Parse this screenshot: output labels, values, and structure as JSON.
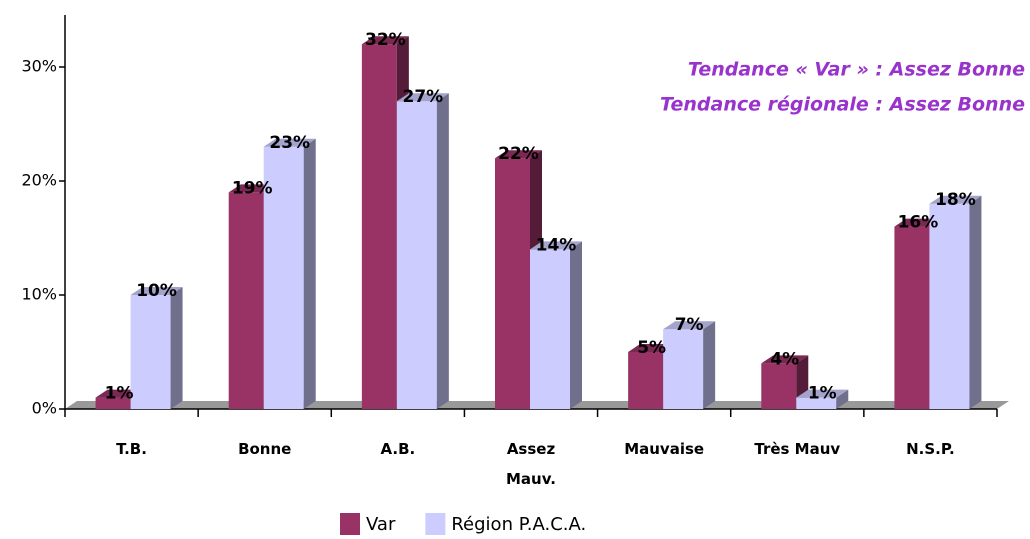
{
  "chart_data": {
    "type": "bar3d",
    "categories": [
      "T.B.",
      "Bonne",
      "A.B.",
      "Assez\nMauv.",
      "Mauvaise",
      "Très Mauv",
      "N.S.P."
    ],
    "series": [
      {
        "name": "Var",
        "color": "#993366",
        "values": [
          1,
          19,
          32,
          22,
          5,
          4,
          16
        ],
        "value_labels": [
          "1%",
          "19%",
          "32%",
          "22%",
          "5%",
          "4%",
          "16%"
        ]
      },
      {
        "name": "Région P.A.C.A.",
        "color": "#ccccff",
        "values": [
          10,
          23,
          27,
          14,
          7,
          1,
          18
        ],
        "value_labels": [
          "10%",
          "23%",
          "27%",
          "14%",
          "7%",
          "1%",
          "18%"
        ]
      }
    ],
    "ylim": [
      0,
      35
    ],
    "yticks": [
      {
        "value": 0,
        "label": "0%"
      },
      {
        "value": 10,
        "label": "10%"
      },
      {
        "value": 20,
        "label": "20%"
      },
      {
        "value": 30,
        "label": "30%"
      }
    ],
    "annotations": [
      "Tendance « Var » : Assez Bonne",
      "Tendance régionale : Assez Bonne"
    ],
    "legend": "bottom"
  }
}
